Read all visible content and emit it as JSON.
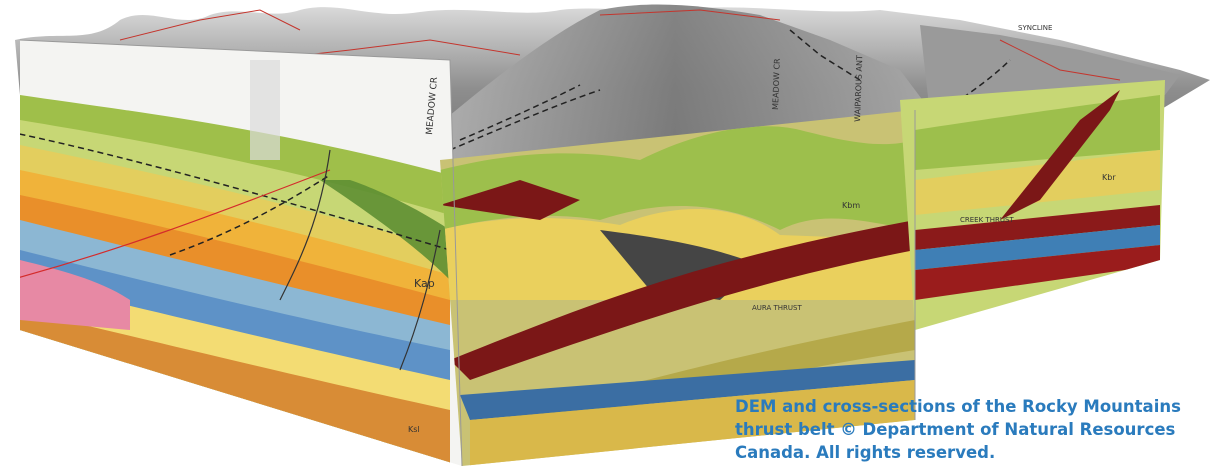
{
  "figure": {
    "caption_lines": [
      "DEM and cross-sections of the Rocky Mountains",
      "thrust belt © Department of Natural Resources",
      "Canada. All rights reserved."
    ],
    "section_labels": {
      "meadow_creek_left": "MEADOW CR",
      "meadow_creek_right": "MEADOW CR",
      "waiparous_anticline": "WAIPAROUS ANT",
      "syncline": "SYNCLINE",
      "aura_thrust": "AURA THRUST",
      "creek_thrust": "CREEK THRUST",
      "formation_kap": "Kap",
      "formation_kbr": "Kbr",
      "formation_ksl": "Ksl",
      "formation_kbm": "Kbm"
    }
  }
}
